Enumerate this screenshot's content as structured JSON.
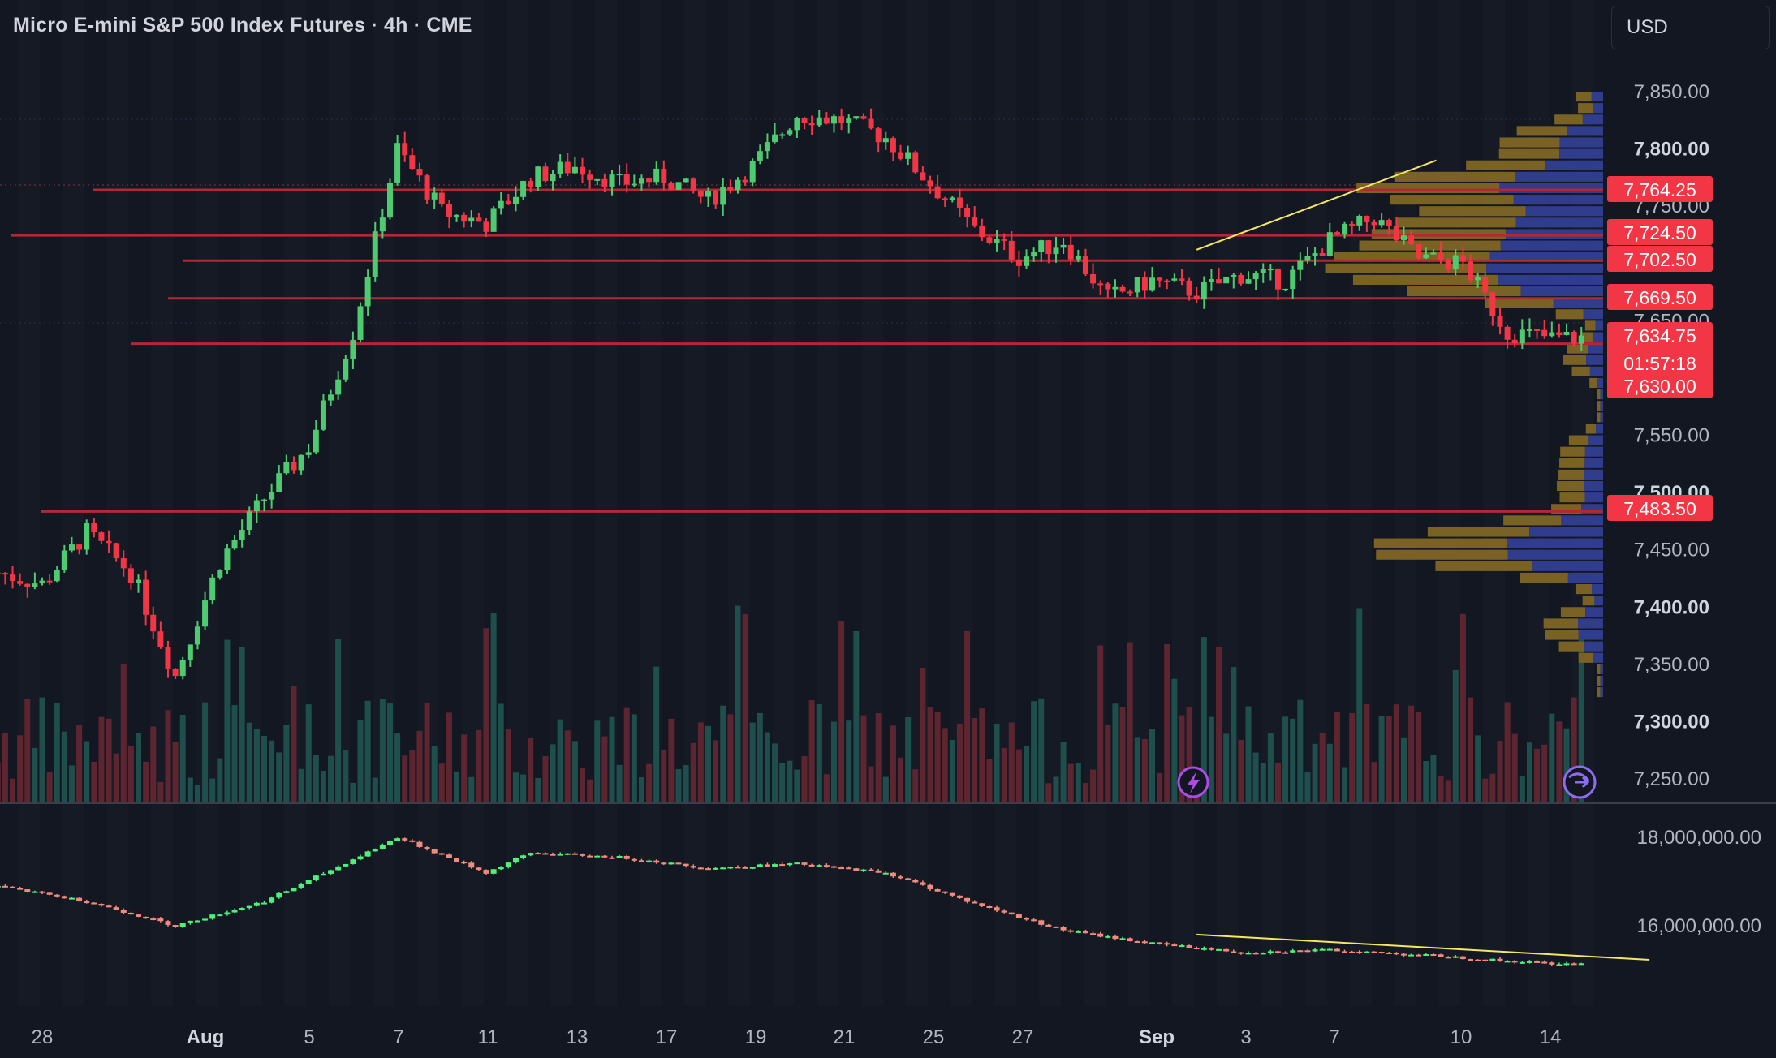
{
  "header": {
    "title": "Micro E-mini S&P 500 Index Futures · 4h · CME",
    "currency": "USD"
  },
  "colors": {
    "background": "#131722",
    "up": "#26a69a",
    "up_bright": "#4ecb71",
    "down": "#f23645",
    "level_line": "#b22833",
    "trendline": "#f5e663",
    "vp_up": "#303c8c",
    "vp_down": "#7a6224",
    "vol_up": "#1f4f4c",
    "vol_down": "#5c2530",
    "indicator_up": "#4ef07a",
    "indicator_down": "#f28b7c",
    "badge": "#f23645",
    "accent_icon": "#b04ae6"
  },
  "price_axis": {
    "ticks": [
      "7,850.00",
      "7,800.00",
      "7,750.00",
      "7,650.00",
      "7,550.00",
      "7,500.00",
      "7,450.00",
      "7,400.00",
      "7,350.00",
      "7,300.00",
      "7,250.00"
    ],
    "tick_values": [
      7850,
      7800,
      7750,
      7650,
      7550,
      7500,
      7450,
      7400,
      7350,
      7300,
      7250
    ],
    "bold_ticks": [
      "7,800.00",
      "7,500.00",
      "7,400.00",
      "7,300.00"
    ]
  },
  "indicator_axis": {
    "ticks": [
      "18,000,000.00",
      "16,000,000.00"
    ],
    "tick_values": [
      18000000,
      16000000
    ]
  },
  "time_axis": {
    "labels": [
      "28",
      "Aug",
      "5",
      "7",
      "11",
      "13",
      "17",
      "19",
      "21",
      "25",
      "27",
      "Sep",
      "3",
      "7",
      "10",
      "14"
    ],
    "bold_labels": [
      "Aug",
      "Sep"
    ]
  },
  "price_badges": [
    {
      "label": "7,764.25",
      "value": 7764.25
    },
    {
      "label": "7,724.50",
      "value": 7724.5
    },
    {
      "label": "7,702.50",
      "value": 7702.5
    },
    {
      "label": "7,669.50",
      "value": 7669.5
    },
    {
      "label": "7,634.75",
      "value": 7634.75,
      "sub": "01:57:18"
    },
    {
      "label": "7,630.00",
      "value": 7630
    },
    {
      "label": "7,483.50",
      "value": 7483.5
    }
  ],
  "chart_data": [
    {
      "type": "candlestick",
      "title": "Micro E-mini S&P 500 Index Futures · 4h · CME",
      "ylim": [
        7230,
        7870
      ],
      "x_range": [
        "Jul 27",
        "Sep 15"
      ],
      "last_price": 7634.75,
      "countdown": "01:57:18",
      "horizontal_levels": [
        7764.25,
        7724.5,
        7702.5,
        7669.5,
        7630,
        7483.5
      ],
      "trendline": {
        "from": [
          7712,
          "Aug 23"
        ],
        "to": [
          7790,
          "Aug 28"
        ]
      },
      "volume_profile": "right-side histogram, 7325–7855",
      "close_path_by_day": [
        [
          "Jul 27",
          7430
        ],
        [
          "Jul 28",
          7420
        ],
        [
          "Jul 29",
          7465
        ],
        [
          "Jul 30",
          7430
        ],
        [
          "Jul 31",
          7340
        ],
        [
          "Aug 1",
          7440
        ],
        [
          "Aug 2",
          7495
        ],
        [
          "Aug 3",
          7540
        ],
        [
          "Aug 4",
          7640
        ],
        [
          "Aug 5",
          7800
        ],
        [
          "Aug 6",
          7745
        ],
        [
          "Aug 7",
          7735
        ],
        [
          "Aug 8",
          7775
        ],
        [
          "Aug 9",
          7785
        ],
        [
          "Aug 10",
          7770
        ],
        [
          "Aug 11",
          7775
        ],
        [
          "Aug 12",
          7755
        ],
        [
          "Aug 13",
          7785
        ],
        [
          "Aug 14",
          7830
        ],
        [
          "Aug 15",
          7825
        ],
        [
          "Aug 16",
          7810
        ],
        [
          "Aug 17",
          7770
        ],
        [
          "Aug 18",
          7730
        ],
        [
          "Aug 19",
          7705
        ],
        [
          "Aug 20",
          7720
        ],
        [
          "Aug 21",
          7670
        ],
        [
          "Aug 22",
          7685
        ],
        [
          "Aug 23",
          7675
        ],
        [
          "Aug 24",
          7690
        ],
        [
          "Aug 25",
          7685
        ],
        [
          "Aug 26",
          7720
        ],
        [
          "Aug 27",
          7740
        ],
        [
          "Aug 28",
          7705
        ],
        [
          "Aug 29",
          7700
        ],
        [
          "Aug 30",
          7640
        ],
        [
          "Aug 31",
          7635
        ]
      ]
    },
    {
      "type": "candlestick",
      "series_role": "lower indicator pane",
      "ylim": [
        15000000,
        19000000
      ],
      "trendline": {
        "from": [
          15800000,
          "Aug 23"
        ],
        "to": [
          15230000,
          "Sep 2"
        ]
      },
      "close_path_by_day": [
        [
          "Jul 27",
          16900000
        ],
        [
          "Jul 29",
          16550000
        ],
        [
          "Jul 31",
          16000000
        ],
        [
          "Aug 2",
          16550000
        ],
        [
          "Aug 4",
          17500000
        ],
        [
          "Aug 5",
          18000000
        ],
        [
          "Aug 7",
          17200000
        ],
        [
          "Aug 8",
          17650000
        ],
        [
          "Aug 10",
          17550000
        ],
        [
          "Aug 12",
          17300000
        ],
        [
          "Aug 14",
          17400000
        ],
        [
          "Aug 16",
          17200000
        ],
        [
          "Aug 18",
          16500000
        ],
        [
          "Aug 20",
          15900000
        ],
        [
          "Aug 22",
          15600000
        ],
        [
          "Aug 24",
          15400000
        ],
        [
          "Aug 26",
          15450000
        ],
        [
          "Aug 28",
          15350000
        ],
        [
          "Aug 30",
          15200000
        ],
        [
          "Aug 31",
          15150000
        ]
      ]
    }
  ]
}
